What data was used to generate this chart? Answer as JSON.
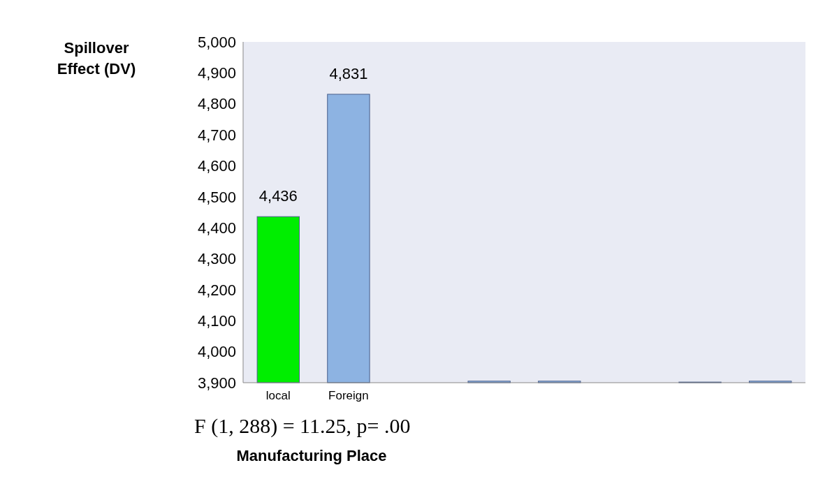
{
  "chart_data": {
    "type": "bar",
    "xlabel": "Manufacturing Place",
    "ylabel": "Spillover Effect (DV)",
    "categories": [
      "local",
      "Foreign",
      null,
      null,
      null,
      null,
      null,
      null
    ],
    "values": [
      4436,
      4831,
      null,
      3905,
      3905,
      null,
      3902,
      3905
    ],
    "colors": [
      "#00ee00",
      "#8db3e2",
      null,
      "#8db3e2",
      "#8db3e2",
      null,
      "#8db3e2",
      "#8db3e2"
    ],
    "value_labels": [
      "4,436",
      "4,831",
      null,
      null,
      null,
      null,
      null,
      null
    ],
    "ylim": [
      3900,
      5000
    ],
    "yticks": [
      {
        "value": 3900,
        "label": "3,900"
      },
      {
        "value": 4000,
        "label": "4,000"
      },
      {
        "value": 4100,
        "label": "4,100"
      },
      {
        "value": 4200,
        "label": "4,200"
      },
      {
        "value": 4300,
        "label": "4,300"
      },
      {
        "value": 4400,
        "label": "4,400"
      },
      {
        "value": 4500,
        "label": "4,500"
      },
      {
        "value": 4600,
        "label": "4,600"
      },
      {
        "value": 4700,
        "label": "4,700"
      },
      {
        "value": 4800,
        "label": "4,800"
      },
      {
        "value": 4900,
        "label": "4,900"
      },
      {
        "value": 5000,
        "label": "5,000"
      }
    ],
    "annotations": [
      "F (1, 288) = 11.25, p= .00"
    ],
    "grid": false
  }
}
